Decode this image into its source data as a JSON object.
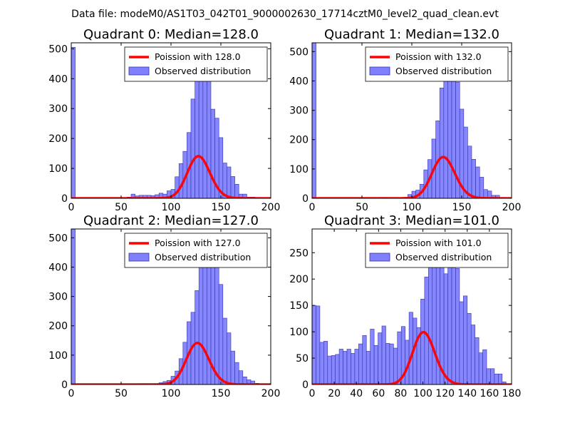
{
  "figure_title": "Data file: modeM0/AS1T03_042T01_9000002630_17714cztM0_level2_quad_clean.evt",
  "colors": {
    "hist_fill": "#8080ff",
    "hist_edge": "#3333aa",
    "poisson": "#ff0000",
    "axis": "#000000"
  },
  "chart_data": [
    {
      "type": "bar",
      "title": "Quadrant 0: Median=128.0",
      "xlabel": "",
      "ylabel": "",
      "xlim": [
        0,
        200
      ],
      "ylim": [
        0,
        520
      ],
      "xticks": [
        "0",
        "50",
        "100",
        "150",
        "200"
      ],
      "yticks": [
        "0",
        "100",
        "200",
        "300",
        "400",
        "500"
      ],
      "legend_position": "top-right",
      "legend": [
        "Poission with 128.0",
        "Observed distribution"
      ],
      "bin_width": 4,
      "series": [
        {
          "name": "Observed distribution",
          "x": [
            0,
            56,
            60,
            64,
            68,
            72,
            76,
            80,
            84,
            88,
            92,
            96,
            100,
            104,
            108,
            112,
            116,
            120,
            124,
            128,
            132,
            136,
            140,
            144,
            148,
            152,
            156,
            160,
            164,
            168,
            172,
            176,
            180,
            184
          ],
          "values": [
            505,
            4,
            14,
            8,
            10,
            10,
            10,
            9,
            12,
            17,
            14,
            25,
            30,
            72,
            116,
            157,
            220,
            332,
            465,
            500,
            445,
            400,
            298,
            268,
            203,
            118,
            105,
            73,
            47,
            14,
            14,
            4,
            4,
            1
          ]
        },
        {
          "name": "Poission with 128.0",
          "kind": "poisson",
          "lambda": 128.0,
          "scale": 4000
        }
      ]
    },
    {
      "type": "bar",
      "title": "Quadrant 1: Median=132.0",
      "xlabel": "",
      "ylabel": "",
      "xlim": [
        0,
        200
      ],
      "ylim": [
        0,
        530
      ],
      "xticks": [
        "0",
        "50",
        "100",
        "150",
        "200"
      ],
      "yticks": [
        "0",
        "100",
        "200",
        "300",
        "400",
        "500"
      ],
      "legend_position": "top-right",
      "legend": [
        "Poission with 132.0",
        "Observed distribution"
      ],
      "bin_width": 4,
      "series": [
        {
          "name": "Observed distribution",
          "x": [
            0,
            68,
            72,
            96,
            100,
            104,
            108,
            112,
            116,
            120,
            124,
            128,
            132,
            136,
            140,
            144,
            148,
            152,
            156,
            160,
            164,
            168,
            172,
            176,
            180,
            184,
            188
          ],
          "values": [
            530,
            3,
            3,
            13,
            24,
            28,
            48,
            97,
            132,
            202,
            264,
            376,
            450,
            493,
            418,
            396,
            304,
            243,
            178,
            133,
            107,
            72,
            30,
            25,
            10,
            10,
            3
          ]
        },
        {
          "name": "Poission with 132.0",
          "kind": "poisson",
          "lambda": 132.0,
          "scale": 4050
        }
      ]
    },
    {
      "type": "bar",
      "title": "Quadrant 2: Median=127.0",
      "xlabel": "",
      "ylabel": "",
      "xlim": [
        0,
        200
      ],
      "ylim": [
        0,
        530
      ],
      "xticks": [
        "0",
        "50",
        "100",
        "150",
        "200"
      ],
      "yticks": [
        "0",
        "100",
        "200",
        "300",
        "400",
        "500"
      ],
      "legend_position": "top-right",
      "legend": [
        "Poission with 127.0",
        "Observed distribution"
      ],
      "bin_width": 4,
      "series": [
        {
          "name": "Observed distribution",
          "x": [
            0,
            68,
            72,
            76,
            80,
            84,
            88,
            92,
            96,
            100,
            104,
            108,
            112,
            116,
            120,
            124,
            128,
            132,
            136,
            140,
            144,
            148,
            152,
            156,
            160,
            164,
            168,
            172,
            176,
            180,
            184
          ],
          "values": [
            530,
            3,
            3,
            3,
            3,
            3,
            6,
            10,
            14,
            28,
            46,
            88,
            144,
            214,
            246,
            320,
            419,
            490,
            472,
            450,
            406,
            341,
            226,
            176,
            114,
            75,
            47,
            26,
            16,
            12,
            4
          ]
        },
        {
          "name": "Poission with 127.0",
          "kind": "poisson",
          "lambda": 127.0,
          "scale": 4000
        }
      ]
    },
    {
      "type": "bar",
      "title": "Quadrant 3: Median=101.0",
      "xlabel": "",
      "ylabel": "",
      "xlim": [
        0,
        180
      ],
      "ylim": [
        0,
        295
      ],
      "xticks": [
        "0",
        "20",
        "40",
        "60",
        "80",
        "100",
        "120",
        "140",
        "160",
        "180"
      ],
      "yticks": [
        "0",
        "50",
        "100",
        "150",
        "200",
        "250"
      ],
      "legend_position": "top-right",
      "legend": [
        "Poission with 101.0",
        "Observed distribution"
      ],
      "bin_width": 3.5,
      "series": [
        {
          "name": "Observed distribution",
          "x": [
            0,
            3.5,
            7,
            10.5,
            14,
            17.5,
            21,
            24.5,
            28,
            31.5,
            35,
            38.5,
            42,
            45.5,
            49,
            52.5,
            56,
            59.5,
            63,
            66.5,
            70,
            73.5,
            77,
            80.5,
            84,
            87.5,
            91,
            94.5,
            98,
            101.5,
            105,
            108.5,
            112,
            115.5,
            119,
            122.5,
            126,
            129.5,
            133,
            136.5,
            140,
            143.5,
            147,
            150.5,
            154,
            157.5,
            161,
            164.5,
            168,
            171.5
          ],
          "values": [
            150,
            149,
            80,
            82,
            54,
            55,
            57,
            67,
            63,
            67,
            59,
            67,
            77,
            93,
            63,
            105,
            74,
            98,
            111,
            78,
            77,
            69,
            100,
            110,
            84,
            137,
            126,
            108,
            162,
            204,
            240,
            226,
            260,
            283,
            210,
            250,
            286,
            220,
            157,
            168,
            135,
            113,
            89,
            60,
            66,
            30,
            30,
            20,
            20,
            5
          ]
        },
        {
          "name": "Poission with 101.0",
          "kind": "poisson",
          "lambda": 101.0,
          "scale": 2500
        }
      ]
    }
  ]
}
